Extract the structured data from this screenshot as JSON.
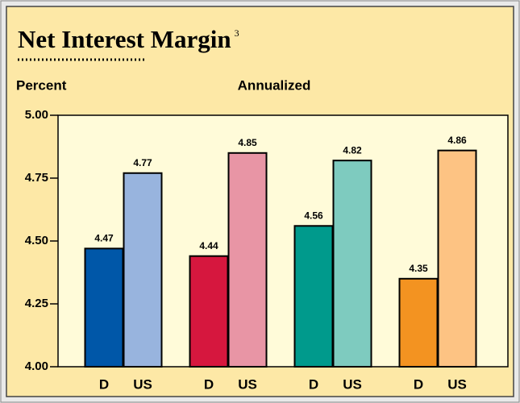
{
  "chart_data": {
    "type": "bar",
    "title": "Net Interest Margin",
    "title_note": "3",
    "y_label": "Percent",
    "subtitle": "Annualized",
    "categories": [
      "D",
      "US",
      "D",
      "US",
      "D",
      "US",
      "D",
      "US"
    ],
    "values": [
      4.47,
      4.77,
      4.44,
      4.85,
      4.56,
      4.82,
      4.35,
      4.86
    ],
    "colors": [
      "#0057a8",
      "#98b4de",
      "#d6173e",
      "#e895a5",
      "#009a8c",
      "#7ecbbf",
      "#f39321",
      "#fdc383"
    ],
    "ylim": [
      4,
      5
    ],
    "yticks": [
      {
        "value": 4,
        "label": "4.00"
      },
      4.25,
      {
        "value": 4.5,
        "label": "4.50"
      },
      4.75,
      {
        "value": 5,
        "label": "5.00"
      }
    ]
  }
}
